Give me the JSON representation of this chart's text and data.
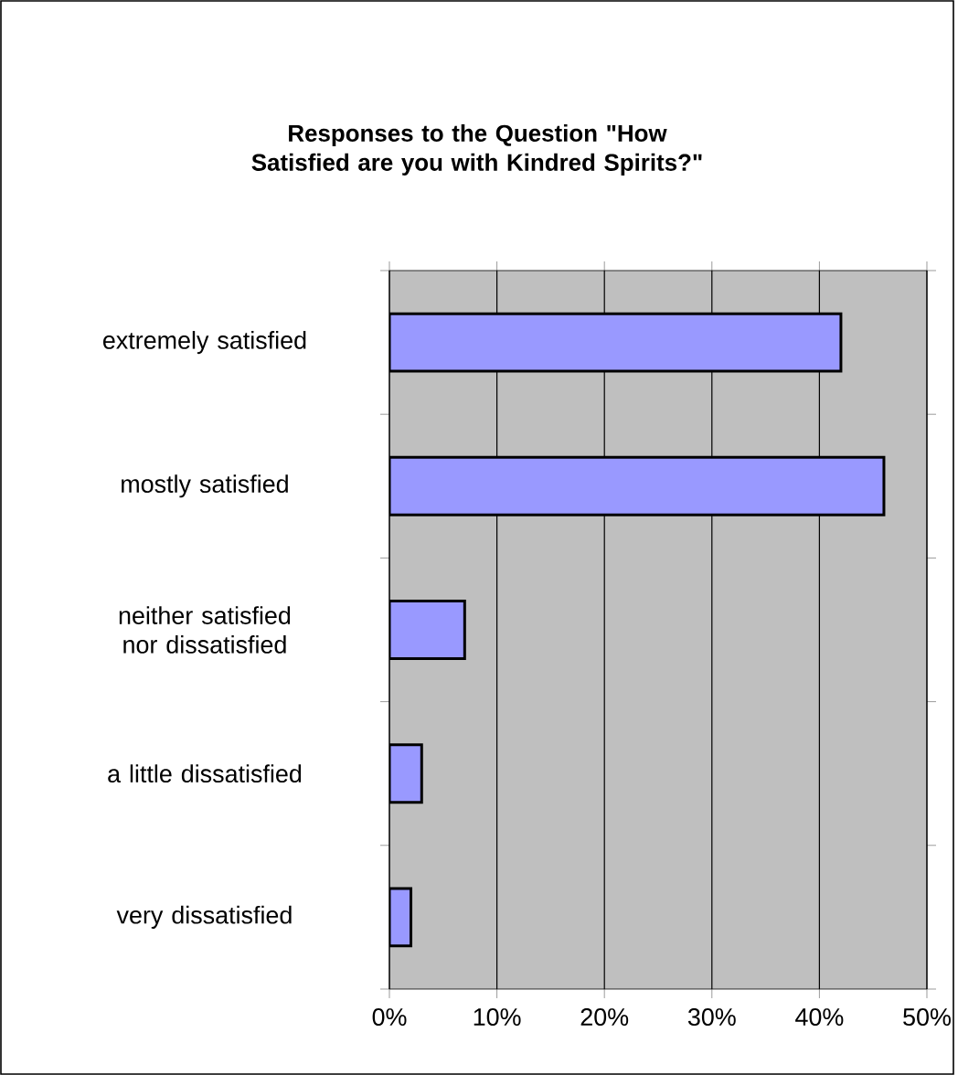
{
  "chart_data": {
    "type": "bar",
    "orientation": "horizontal",
    "title": "Responses to the Question \"How Satisfied are you with Kindred Spirits?\"",
    "categories": [
      "extremely satisfied",
      "mostly satisfied",
      "neither satisfied nor dissatisfied",
      "a little dissatisfied",
      "very dissatisfied"
    ],
    "values": [
      42,
      46,
      7,
      3,
      2
    ],
    "color": "#9999ff",
    "xlim": [
      0,
      50
    ],
    "xticks": [
      {
        "value": 0,
        "label": "0%"
      },
      {
        "value": 10,
        "label": "10%"
      },
      {
        "value": 20,
        "label": "20%"
      },
      {
        "value": 30,
        "label": "30%"
      },
      {
        "value": 40,
        "label": "40%"
      },
      {
        "value": 50,
        "label": "50%"
      }
    ],
    "grid": "x",
    "legend": false
  }
}
